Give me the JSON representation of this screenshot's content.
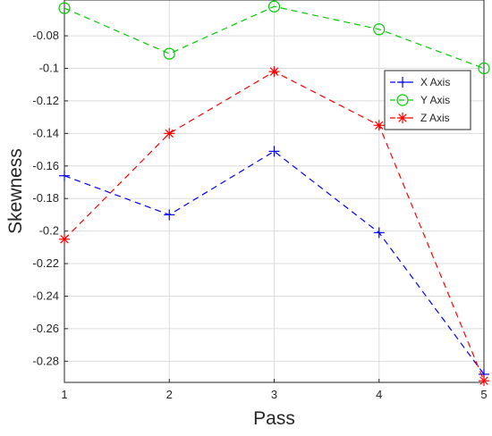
{
  "chart_data": {
    "type": "line",
    "xlabel": "Pass",
    "ylabel": "Skewness",
    "x": [
      1,
      2,
      3,
      4,
      5
    ],
    "xlim": [
      1,
      5
    ],
    "ylim": [
      -0.293,
      -0.058
    ],
    "xticks": [
      "1",
      "2",
      "3",
      "4",
      "5"
    ],
    "yticks": [
      -0.28,
      -0.26,
      -0.24,
      -0.22,
      -0.2,
      -0.18,
      -0.16,
      -0.14,
      -0.12,
      -0.1,
      -0.08
    ],
    "ytick_labels": [
      "-0.28",
      "-0.26",
      "-0.24",
      "-0.22",
      "-0.2",
      "-0.18",
      "-0.16",
      "-0.14",
      "-0.12",
      "-0.1",
      "-0.08"
    ],
    "grid": true,
    "legend_position": "top-right",
    "series": [
      {
        "name": "X Axis",
        "color": "#0000ff",
        "marker": "plus",
        "values": [
          -0.166,
          -0.19,
          -0.151,
          -0.201,
          -0.288
        ]
      },
      {
        "name": "Y Axis",
        "color": "#00cc00",
        "marker": "circle",
        "values": [
          -0.063,
          -0.091,
          -0.062,
          -0.076,
          -0.1
        ]
      },
      {
        "name": "Z Axis",
        "color": "#ff0000",
        "marker": "asterisk",
        "values": [
          -0.205,
          -0.14,
          -0.102,
          -0.135,
          -0.292
        ]
      }
    ]
  }
}
